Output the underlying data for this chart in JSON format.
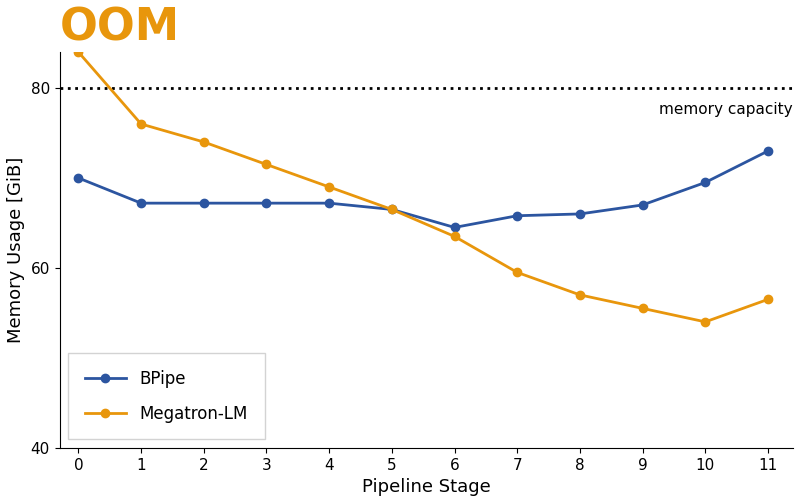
{
  "stages": [
    0,
    1,
    2,
    3,
    4,
    5,
    6,
    7,
    8,
    9,
    10,
    11
  ],
  "bpipe": [
    70.0,
    67.2,
    67.2,
    67.2,
    67.2,
    66.5,
    64.5,
    65.8,
    66.0,
    67.0,
    69.5,
    73.0
  ],
  "megatron": [
    84.0,
    76.0,
    74.0,
    71.5,
    69.0,
    66.5,
    63.5,
    59.5,
    57.0,
    55.5,
    54.0,
    56.5
  ],
  "bpipe_color": "#2c55a0",
  "megatron_color": "#e8960c",
  "memory_capacity": 80,
  "ylim": [
    40,
    84
  ],
  "xlabel": "Pipeline Stage",
  "ylabel": "Memory Usage [GiB]",
  "title": "OOM",
  "title_color": "#e8960c",
  "title_fontsize": 32,
  "capacity_label": "memory capacity",
  "legend_bpipe": "BPipe",
  "legend_megatron": "Megatron-LM",
  "yticks": [
    40,
    60,
    80
  ],
  "xticks": [
    0,
    1,
    2,
    3,
    4,
    5,
    6,
    7,
    8,
    9,
    10,
    11
  ]
}
